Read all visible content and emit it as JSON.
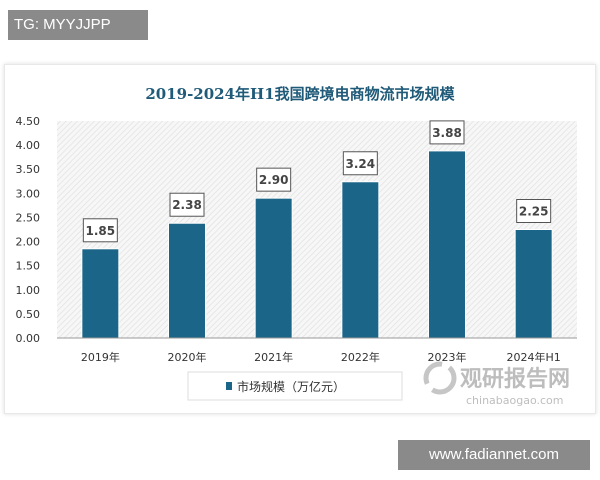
{
  "overlay": {
    "tg_label": "TG: MYYJJPP",
    "footer_url": "www.fadiannet.com"
  },
  "watermark": {
    "brand": "观研报告网",
    "site": "chinabaogao.com"
  },
  "colors": {
    "bar": "#1b6688",
    "title": "#1f5a78"
  },
  "chart_data": {
    "type": "bar",
    "title": "2019-2024年H1我国跨境电商物流市场规模",
    "categories": [
      "2019年",
      "2020年",
      "2021年",
      "2022年",
      "2023年",
      "2024年H1"
    ],
    "series": [
      {
        "name": "市场规模（万亿元）",
        "values": [
          1.85,
          2.38,
          2.9,
          3.24,
          3.88,
          2.25
        ]
      }
    ],
    "data_labels": [
      "1.85",
      "2.38",
      "2.90",
      "3.24",
      "3.88",
      "2.25"
    ],
    "yticks": [
      "0.00",
      "0.50",
      "1.00",
      "1.50",
      "2.00",
      "2.50",
      "3.00",
      "3.50",
      "4.00",
      "4.50"
    ],
    "ylim": [
      0,
      4.5
    ],
    "legend_position": "bottom",
    "grid": false,
    "xlabel": "",
    "ylabel": ""
  }
}
